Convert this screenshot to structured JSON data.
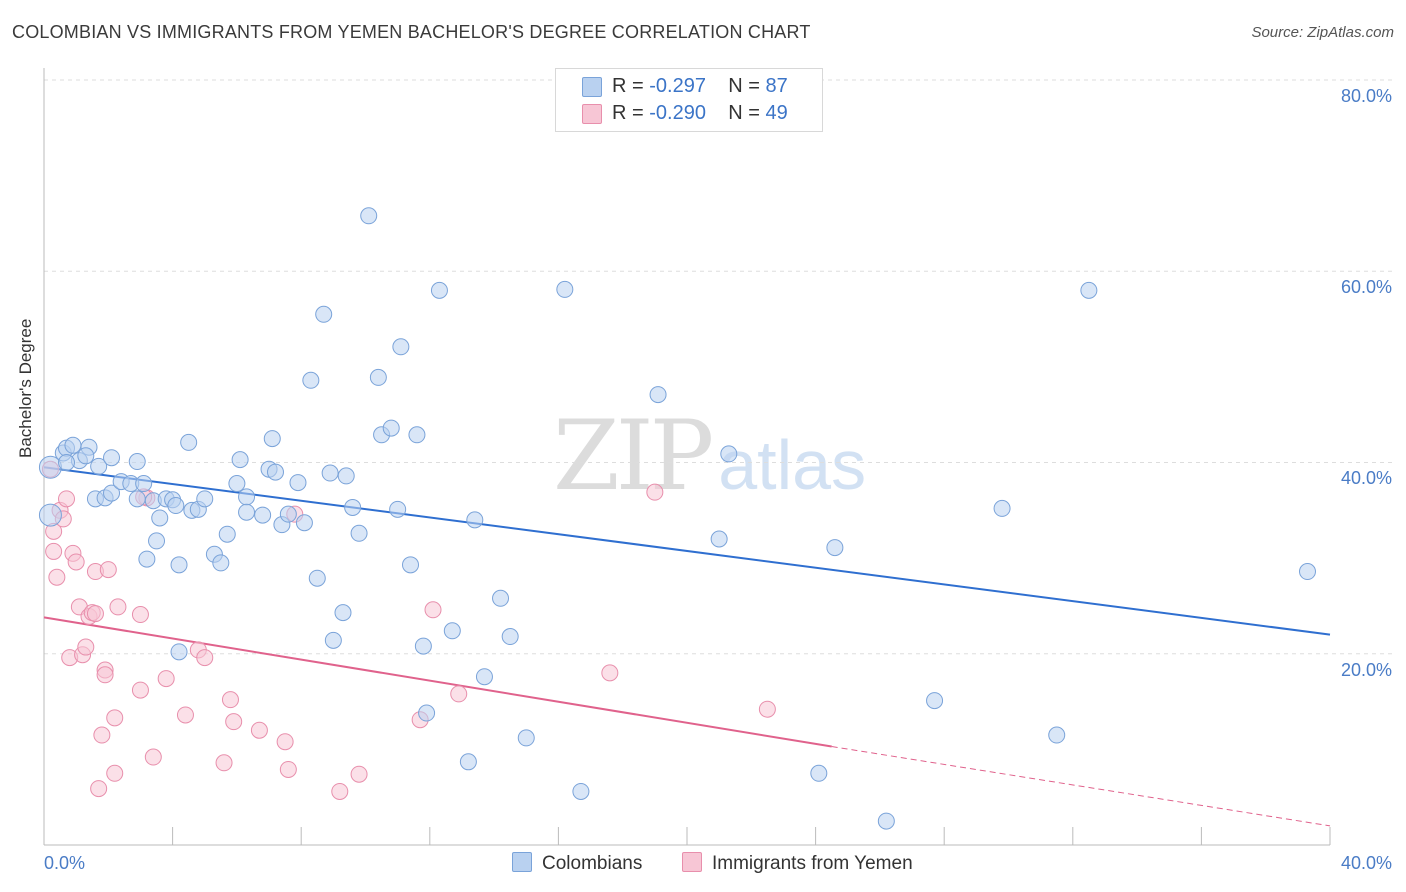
{
  "title": "COLOMBIAN VS IMMIGRANTS FROM YEMEN BACHELOR'S DEGREE CORRELATION CHART",
  "source": "Source: ZipAtlas.com",
  "watermark": {
    "zip": "ZIP",
    "atlas": "atlas"
  },
  "legend_top": {
    "rows": [
      {
        "r_label": "R =",
        "r_value": "-0.297",
        "n_label": "N =",
        "n_value": "87"
      },
      {
        "r_label": "R =",
        "r_value": "-0.290",
        "n_label": "N =",
        "n_value": "49"
      }
    ]
  },
  "legend_bottom": {
    "colombians": "Colombians",
    "yemen": "Immigrants from Yemen"
  },
  "axes": {
    "ylabel": "Bachelor's Degree",
    "yticks": [
      "80.0%",
      "60.0%",
      "40.0%",
      "20.0%"
    ],
    "xtick_left": "0.0%",
    "xtick_right": "40.0%"
  },
  "colors": {
    "blue_fill": "#b9d1f0",
    "blue_stroke": "#7aa3d9",
    "blue_line": "#2f6fd0",
    "pink_fill": "#f7c6d5",
    "pink_stroke": "#e88fac",
    "pink_line": "#e0628c",
    "tick_text": "#4a7cc6",
    "grid": "#dddddd"
  },
  "chart_data": {
    "type": "scatter",
    "title": "COLOMBIAN VS IMMIGRANTS FROM YEMEN BACHELOR'S DEGREE CORRELATION CHART",
    "xlabel": "",
    "ylabel": "Bachelor's Degree",
    "xlim": [
      0,
      40
    ],
    "ylim": [
      0,
      80
    ],
    "grid": true,
    "legend": "bottom-center",
    "series": [
      {
        "name": "Colombians",
        "R": -0.297,
        "N": 87,
        "trend": {
          "x": [
            0,
            40
          ],
          "y": [
            39.5,
            22.0
          ]
        },
        "points": [
          [
            0.2,
            39.5
          ],
          [
            0.2,
            34.5
          ],
          [
            0.6,
            41.0
          ],
          [
            0.7,
            41.5
          ],
          [
            0.9,
            41.8
          ],
          [
            1.1,
            40.2
          ],
          [
            1.4,
            41.6
          ],
          [
            1.7,
            39.6
          ],
          [
            1.6,
            36.2
          ],
          [
            1.9,
            36.3
          ],
          [
            2.1,
            40.5
          ],
          [
            2.1,
            36.8
          ],
          [
            2.4,
            38.0
          ],
          [
            2.7,
            37.8
          ],
          [
            2.9,
            40.1
          ],
          [
            2.9,
            36.2
          ],
          [
            3.1,
            37.8
          ],
          [
            3.2,
            29.9
          ],
          [
            3.4,
            36.0
          ],
          [
            3.5,
            31.8
          ],
          [
            3.6,
            34.2
          ],
          [
            3.8,
            36.2
          ],
          [
            4.0,
            36.1
          ],
          [
            4.1,
            35.5
          ],
          [
            4.2,
            29.3
          ],
          [
            4.2,
            20.2
          ],
          [
            4.5,
            42.1
          ],
          [
            4.6,
            35.0
          ],
          [
            4.8,
            35.1
          ],
          [
            5.0,
            36.2
          ],
          [
            5.3,
            30.4
          ],
          [
            5.5,
            29.5
          ],
          [
            5.7,
            32.5
          ],
          [
            6.0,
            37.8
          ],
          [
            6.1,
            40.3
          ],
          [
            6.3,
            36.4
          ],
          [
            6.3,
            34.8
          ],
          [
            6.8,
            34.5
          ],
          [
            7.0,
            39.3
          ],
          [
            7.1,
            42.5
          ],
          [
            7.2,
            39.0
          ],
          [
            7.4,
            33.5
          ],
          [
            7.6,
            34.6
          ],
          [
            7.9,
            37.9
          ],
          [
            8.1,
            33.7
          ],
          [
            8.3,
            48.6
          ],
          [
            8.5,
            27.9
          ],
          [
            8.7,
            55.5
          ],
          [
            8.9,
            38.9
          ],
          [
            9.0,
            21.4
          ],
          [
            9.3,
            24.3
          ],
          [
            9.4,
            38.6
          ],
          [
            9.6,
            35.3
          ],
          [
            9.8,
            32.6
          ],
          [
            10.1,
            65.8
          ],
          [
            10.4,
            48.9
          ],
          [
            10.5,
            42.9
          ],
          [
            10.8,
            43.6
          ],
          [
            11.0,
            35.1
          ],
          [
            11.1,
            52.1
          ],
          [
            11.4,
            29.3
          ],
          [
            11.6,
            42.9
          ],
          [
            11.8,
            20.8
          ],
          [
            11.9,
            13.8
          ],
          [
            12.3,
            58.0
          ],
          [
            12.7,
            22.4
          ],
          [
            13.2,
            8.7
          ],
          [
            13.4,
            34.0
          ],
          [
            13.7,
            17.6
          ],
          [
            14.2,
            25.8
          ],
          [
            14.5,
            21.8
          ],
          [
            15.0,
            11.2
          ],
          [
            16.2,
            58.1
          ],
          [
            16.7,
            5.6
          ],
          [
            19.1,
            47.1
          ],
          [
            21.0,
            32.0
          ],
          [
            21.3,
            40.9
          ],
          [
            24.1,
            7.5
          ],
          [
            24.6,
            31.1
          ],
          [
            26.2,
            2.5
          ],
          [
            27.7,
            15.1
          ],
          [
            29.8,
            35.2
          ],
          [
            31.5,
            11.5
          ],
          [
            32.5,
            58.0
          ],
          [
            39.3,
            28.6
          ],
          [
            0.7,
            40.0
          ],
          [
            1.3,
            40.7
          ]
        ]
      },
      {
        "name": "Immigrants from Yemen",
        "R": -0.29,
        "N": 49,
        "trend": {
          "x": [
            0,
            24.5
          ],
          "y": [
            23.8,
            10.3
          ]
        },
        "trend_dashed": {
          "x": [
            24.5,
            40
          ],
          "y": [
            10.3,
            2.0
          ]
        },
        "points": [
          [
            0.2,
            39.3
          ],
          [
            0.3,
            32.8
          ],
          [
            0.5,
            35.0
          ],
          [
            0.6,
            34.1
          ],
          [
            0.3,
            30.7
          ],
          [
            0.4,
            28.0
          ],
          [
            0.7,
            36.2
          ],
          [
            0.8,
            19.6
          ],
          [
            0.9,
            30.5
          ],
          [
            1.0,
            29.6
          ],
          [
            1.1,
            24.9
          ],
          [
            1.2,
            19.9
          ],
          [
            1.3,
            20.7
          ],
          [
            1.4,
            23.9
          ],
          [
            1.5,
            24.3
          ],
          [
            1.6,
            28.6
          ],
          [
            1.7,
            5.9
          ],
          [
            1.8,
            11.5
          ],
          [
            1.9,
            18.3
          ],
          [
            1.9,
            17.8
          ],
          [
            2.0,
            28.8
          ],
          [
            2.2,
            13.3
          ],
          [
            2.2,
            7.5
          ],
          [
            2.3,
            24.9
          ],
          [
            3.0,
            16.2
          ],
          [
            3.0,
            24.1
          ],
          [
            3.2,
            36.3
          ],
          [
            3.4,
            9.2
          ],
          [
            3.8,
            17.4
          ],
          [
            4.4,
            13.6
          ],
          [
            4.8,
            20.4
          ],
          [
            5.0,
            19.6
          ],
          [
            5.6,
            8.6
          ],
          [
            5.8,
            15.2
          ],
          [
            5.9,
            12.9
          ],
          [
            6.7,
            12.0
          ],
          [
            7.5,
            10.8
          ],
          [
            7.6,
            7.9
          ],
          [
            7.8,
            34.6
          ],
          [
            9.2,
            5.6
          ],
          [
            9.8,
            7.4
          ],
          [
            11.7,
            13.1
          ],
          [
            12.1,
            24.6
          ],
          [
            12.9,
            15.8
          ],
          [
            17.6,
            18.0
          ],
          [
            19.0,
            36.9
          ],
          [
            22.5,
            14.2
          ],
          [
            3.1,
            36.4
          ],
          [
            1.6,
            24.2
          ]
        ]
      }
    ]
  }
}
